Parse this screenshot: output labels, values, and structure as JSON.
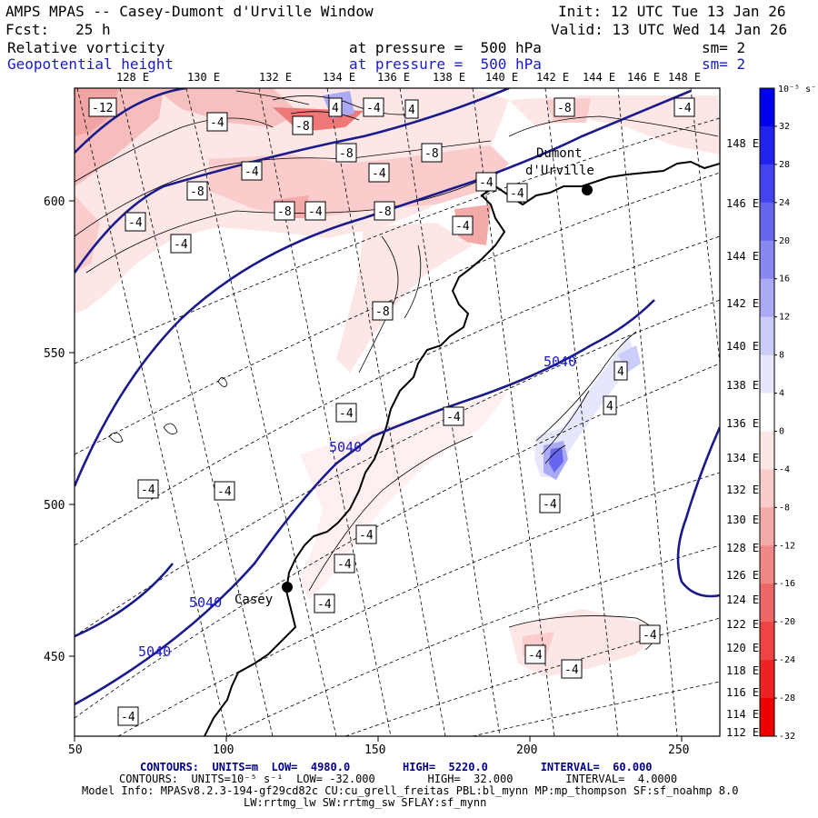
{
  "header": {
    "title": "AMPS MPAS -- Casey-Dumont d'Urville Window",
    "init": "Init: 12 UTC Tue 13 Jan 26",
    "fcst": "Fcst:   25 h",
    "valid": "Valid: 13 UTC Wed 14 Jan 26",
    "field1_name": "Relative vorticity",
    "field1_level": "at pressure =  500 hPa",
    "field1_sm": "sm= 2",
    "field2_name": "Geopotential height",
    "field2_level": "at pressure =  500 hPa",
    "field2_sm": "sm= 2"
  },
  "map": {
    "x_ticks": [
      "50",
      "100",
      "150",
      "200",
      "250"
    ],
    "y_ticks": [
      "450",
      "500",
      "550",
      "600"
    ],
    "top_lon_labels": [
      "128 E",
      "130 E",
      "132 E",
      "134 E",
      "136 E",
      "138 E",
      "140 E",
      "142 E",
      "144 E",
      "146 E",
      "148 E"
    ],
    "right_lon_labels": [
      "148 E",
      "146 E",
      "144 E",
      "142 E",
      "140 E",
      "138 E",
      "136 E",
      "134 E",
      "132 E",
      "130 E",
      "128 E",
      "126 E",
      "124 E",
      "122 E",
      "120 E",
      "118 E",
      "116 E",
      "114 E",
      "112 E"
    ],
    "stations": [
      {
        "name": "Dumont",
        "name2": "d'Urville"
      },
      {
        "name": "Casey"
      }
    ],
    "height_labels": [
      "5040",
      "5040",
      "5040",
      "5040"
    ],
    "vort_labels": [
      "-12",
      "-4",
      "-8",
      "4",
      "-4",
      "4",
      "-8",
      "-4",
      "-4",
      "-8",
      "-4",
      "-8",
      "-8",
      "-8",
      "-4",
      "-4",
      "-4",
      "-8",
      "-4",
      "-4",
      "-4",
      "-8",
      "4",
      "4",
      "-4",
      "-4",
      "-4",
      "-4",
      "-4",
      "-4",
      "-4",
      "-4",
      "-4",
      "-4",
      "-4",
      "-4"
    ]
  },
  "colorbar": {
    "unit": "10⁻⁵ s⁻¹",
    "labels": [
      "32",
      "28",
      "24",
      "20",
      "16",
      "12",
      "8",
      "4",
      "0",
      "-4",
      "-8",
      "-12",
      "-16",
      "-20",
      "-24",
      "-28",
      "-32"
    ],
    "colors": [
      "#0000ee",
      "#2222ee",
      "#4444ee",
      "#6666ee",
      "#8888f0",
      "#aaaaf5",
      "#ccccfa",
      "#e6e6fd",
      "#ffffff",
      "#fde6e6",
      "#facccc",
      "#f5aaaa",
      "#f08888",
      "#ee6666",
      "#ee4444",
      "#ee2222",
      "#ee0000"
    ]
  },
  "footer": {
    "line1_a": "CONTOURS:  UNITS=m  LOW=  4980.0        HIGH=  5220.0        INTERVAL=  60.000",
    "line2": "CONTOURS:  UNITS=10⁻⁵ s⁻¹  LOW= -32.000        HIGH=  32.000        INTERVAL=  4.0000",
    "line3": "Model Info: MPASv8.2.3-194-gf29cd82c CU:cu_grell_freitas PBL:bl_mynn MP:mp_thompson SF:sf_noahmp 8.0",
    "line4": "LW:rrtmg_lw SW:rrtmg_sw SFLAY:sf_mynn"
  }
}
